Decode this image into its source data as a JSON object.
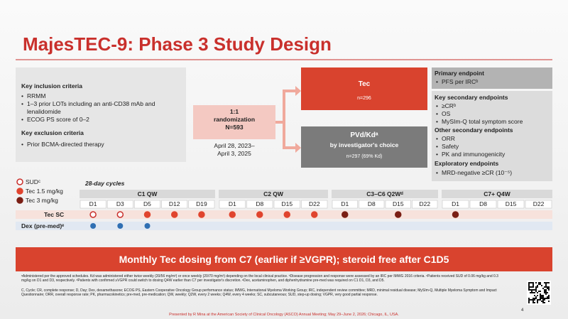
{
  "title": "MajesTEC-9: Phase 3 Study Design",
  "criteria": {
    "inclusion_heading": "Key inclusion criteria",
    "inclusion": [
      "RRMM",
      "1–3 prior LOTs including an anti-CD38 mAb and lenalidomide",
      "ECOG PS score of 0–2"
    ],
    "exclusion_heading": "Key exclusion criteria",
    "exclusion": [
      "Prior BCMA-directed therapy"
    ]
  },
  "randomization": {
    "lines": [
      "1:1",
      "randomization",
      "N=593"
    ],
    "dates": [
      "April 28, 2023–",
      "April 3, 2025"
    ]
  },
  "arms": {
    "tec": {
      "name": "Tec",
      "n": "n=296"
    },
    "pvd": {
      "name": "PVd/Kdᵃ",
      "desc": "by investigator's choice",
      "n": "n=297 (69% Kd)"
    }
  },
  "endpoints": {
    "primary_heading": "Primary endpoint",
    "primary": [
      "PFS per IRCᵇ"
    ],
    "secondary_heading": "Key secondary endpoints",
    "secondary": [
      "≥CRᵇ",
      "OS",
      "MySIm-Q total symptom score"
    ],
    "other_heading": "Other secondary endpoints",
    "other": [
      "ORR",
      "Safety",
      "PK and immunogenicity"
    ],
    "exploratory_heading": "Exploratory endpoints",
    "exploratory": [
      "MRD-negative ≥CR (10⁻⁵)"
    ]
  },
  "schedule": {
    "legend": [
      "SUDᶜ",
      "Tec 1.5 mg/kg",
      "Tec 3 mg/kg"
    ],
    "cycles_label": "28-day cycles",
    "cycles": [
      {
        "name": "C1 QW",
        "days": [
          "D1",
          "D3",
          "D5",
          "D12",
          "D19"
        ]
      },
      {
        "name": "C2 QW",
        "days": [
          "D1",
          "D8",
          "D15",
          "D22"
        ]
      },
      {
        "name": "C3–C6 Q2Wᵈ",
        "days": [
          "D1",
          "D8",
          "D15",
          "D22"
        ]
      },
      {
        "name": "C7+ Q4W",
        "days": [
          "D1",
          "D8",
          "D15",
          "D22"
        ]
      }
    ],
    "rows": [
      "Tec SC",
      "Dex (pre-med)ᵉ"
    ]
  },
  "banner": "Monthly Tec dosing from C7 (earlier if ≥VGPR); steroid free after C1D5",
  "footnotes": [
    "ᵃAdministered per the approved schedules. Kd was administered either twice weekly (20/56 mg/m²) or once weekly (20/70 mg/m²) depending on the local clinical practice. ᵇDisease progression and response were assessed by an IRC per IMWG 2016 criteria. ᶜPatients received SUD of 0.06 mg/kg and 0.3 mg/kg on D1 and D3, respectively. ᵈPatients with confirmed ≥VGPR could switch to dosing Q4W earlier than C7 per investigator's discretion. ᵉDex, acetaminophen, and diphenhydramine pre-med was required on C1 D1, D3, and D5.",
    "C, Cycle; CR, complete response; D, Day; Dex, dexamethasone; ECOG PS, Eastern Cooperative Oncology Group performance status; IMWG, International Myeloma Working Group; IRC, independent review committee; MRD, minimal residual disease; MySIm-Q, Multiple Myeloma Symptom and Impact Questionnaire; ORR, overall response rate; PK, pharmacokinetics; pre-med, pre-medication; QW, weekly; Q2W, every 2 weeks; Q4W, every 4 weeks; SC, subcutaneous; SUD, step-up dosing; VGPR, very good partial response."
  ],
  "footer": "Presented by R Mina at the American Society of Clinical Oncology (ASCO) Annual Meeting; May 29–June 2, 2026; Chicago, IL, USA.",
  "page_number": "4"
}
